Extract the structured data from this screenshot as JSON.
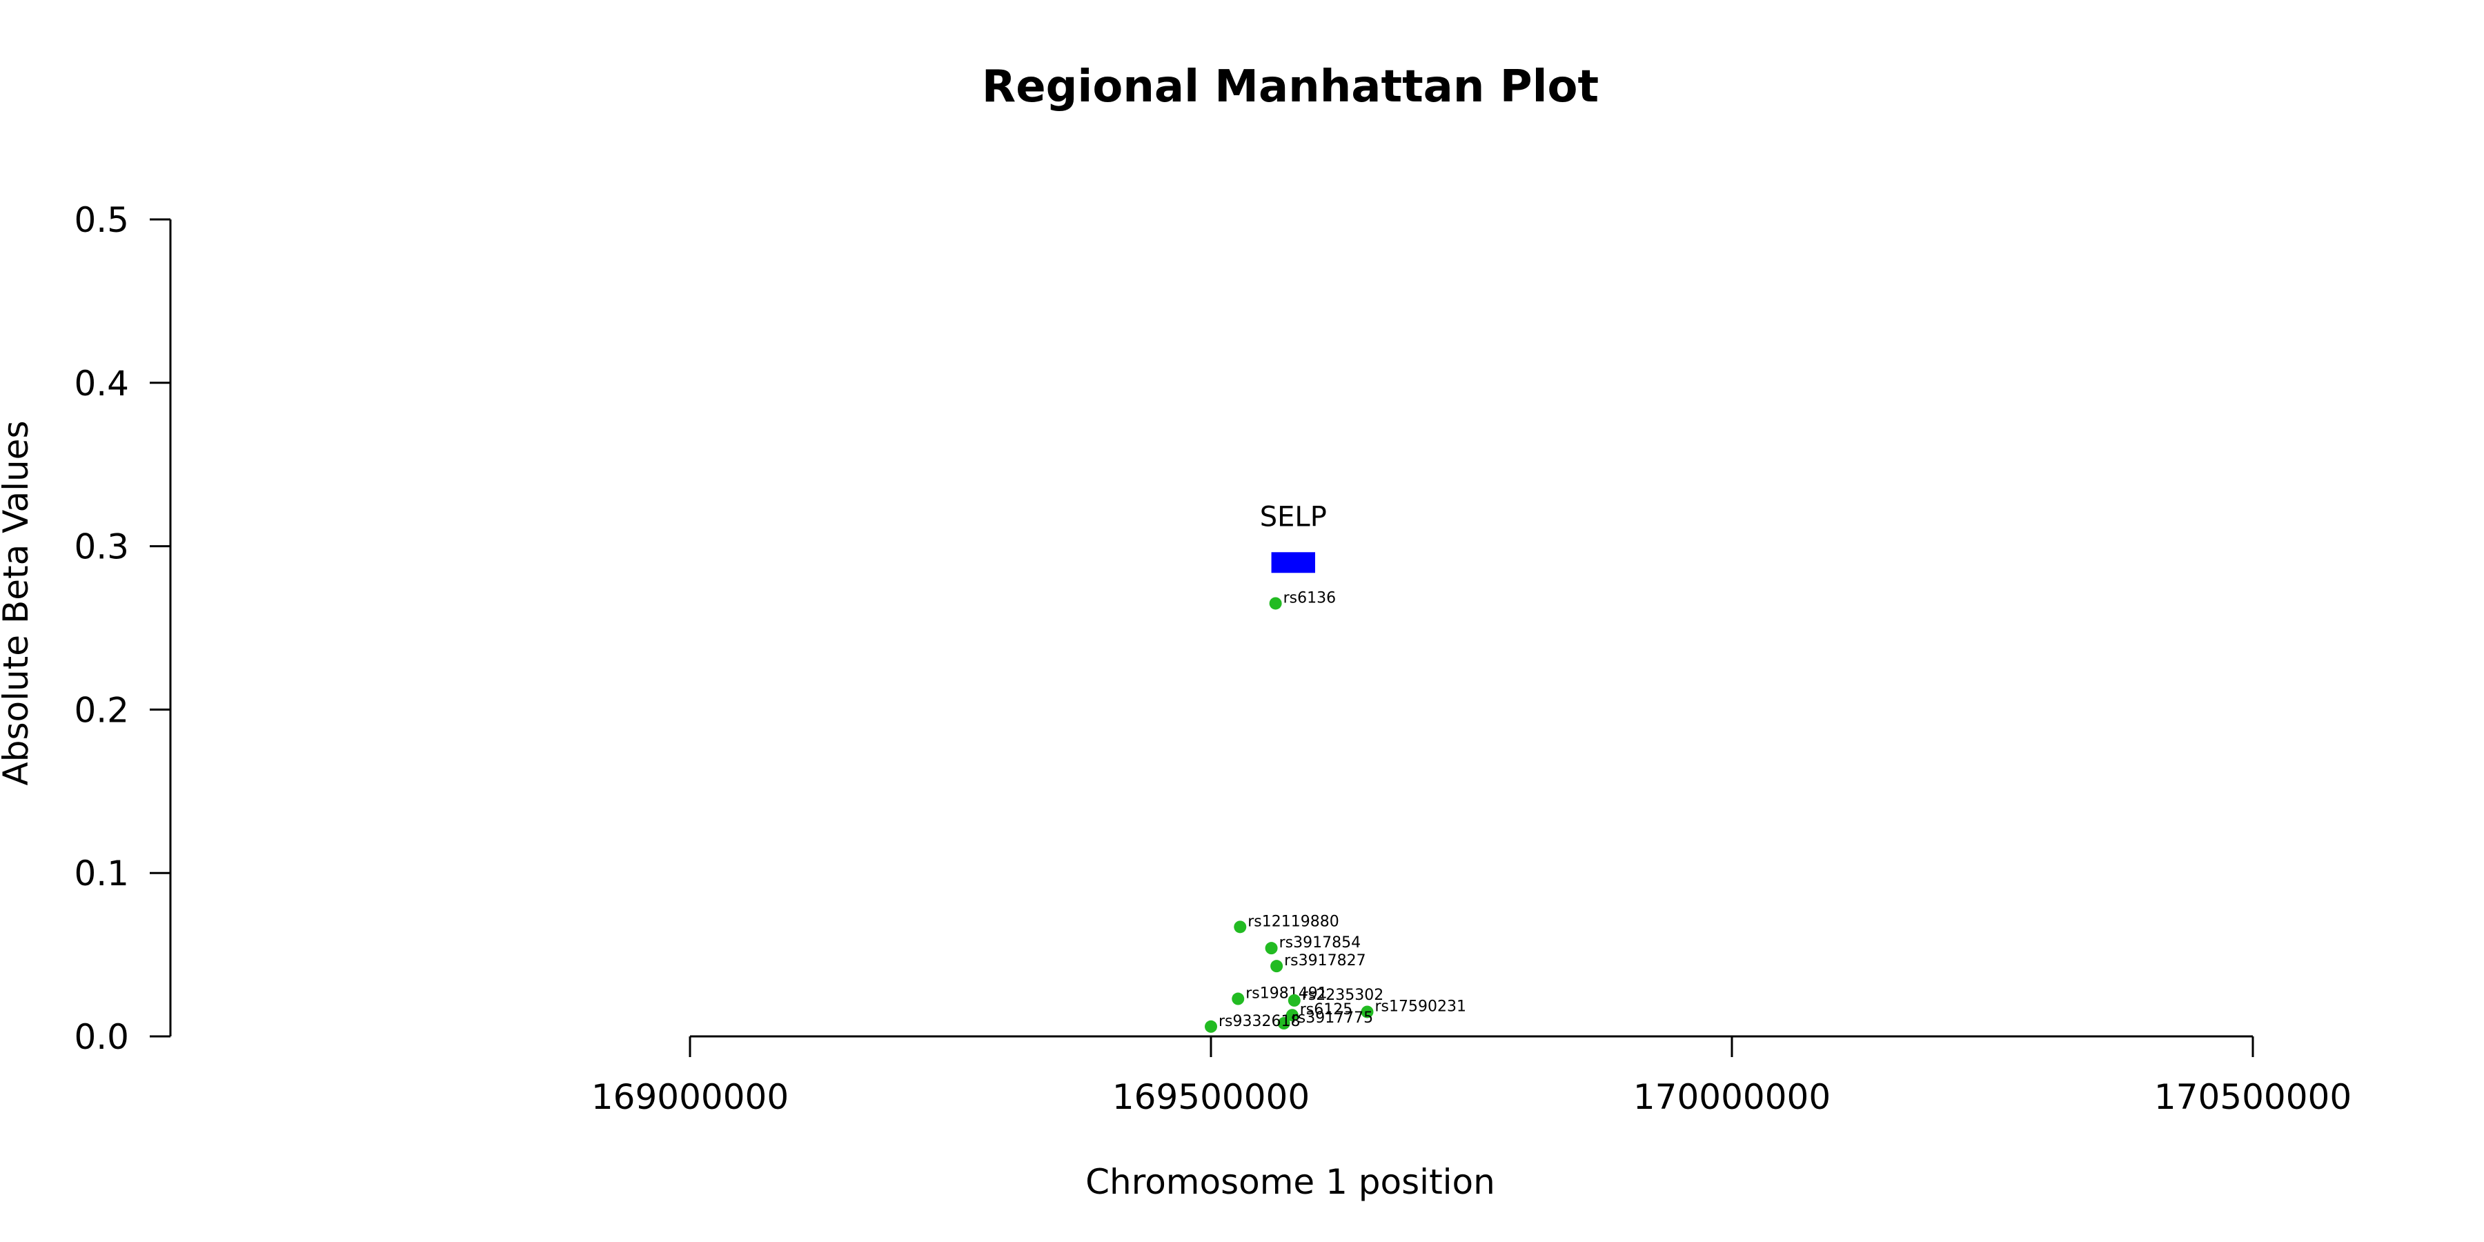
{
  "chart_data": {
    "type": "scatter",
    "title": "Regional Manhattan Plot",
    "xlabel": "Chromosome 1 position",
    "ylabel": "Absolute Beta Values",
    "xlim": [
      168500000,
      170600000
    ],
    "ylim": [
      0,
      0.5
    ],
    "x_ticks": [
      169000000,
      169500000,
      170000000,
      170500000
    ],
    "x_tick_labels": [
      "169000000",
      "169500000",
      "170000000",
      "170500000"
    ],
    "y_ticks": [
      0,
      0.1,
      0.2,
      0.3,
      0.4,
      0.5
    ],
    "y_tick_labels": [
      "0.0",
      "0.1",
      "0.2",
      "0.3",
      "0.4",
      "0.5"
    ],
    "grid": false,
    "point_color": "#22bb22",
    "gene_color": "#0000ff",
    "points": [
      {
        "label": "rs6136",
        "x": 169562000,
        "y": 0.265
      },
      {
        "label": "rs12119880",
        "x": 169528000,
        "y": 0.067
      },
      {
        "label": "rs3917854",
        "x": 169558000,
        "y": 0.054
      },
      {
        "label": "rs3917827",
        "x": 169563000,
        "y": 0.043
      },
      {
        "label": "rs1981491",
        "x": 169526000,
        "y": 0.023
      },
      {
        "label": "rs2235302",
        "x": 169580000,
        "y": 0.022
      },
      {
        "label": "rs6125",
        "x": 169578000,
        "y": 0.013
      },
      {
        "label": "rs17590231",
        "x": 169650000,
        "y": 0.015
      },
      {
        "label": "rs3917775",
        "x": 169570000,
        "y": 0.008
      },
      {
        "label": "rs9332618",
        "x": 169500000,
        "y": 0.006
      }
    ],
    "genes": [
      {
        "name": "SELP",
        "start": 169558000,
        "end": 169600000,
        "y": 0.29
      }
    ]
  }
}
